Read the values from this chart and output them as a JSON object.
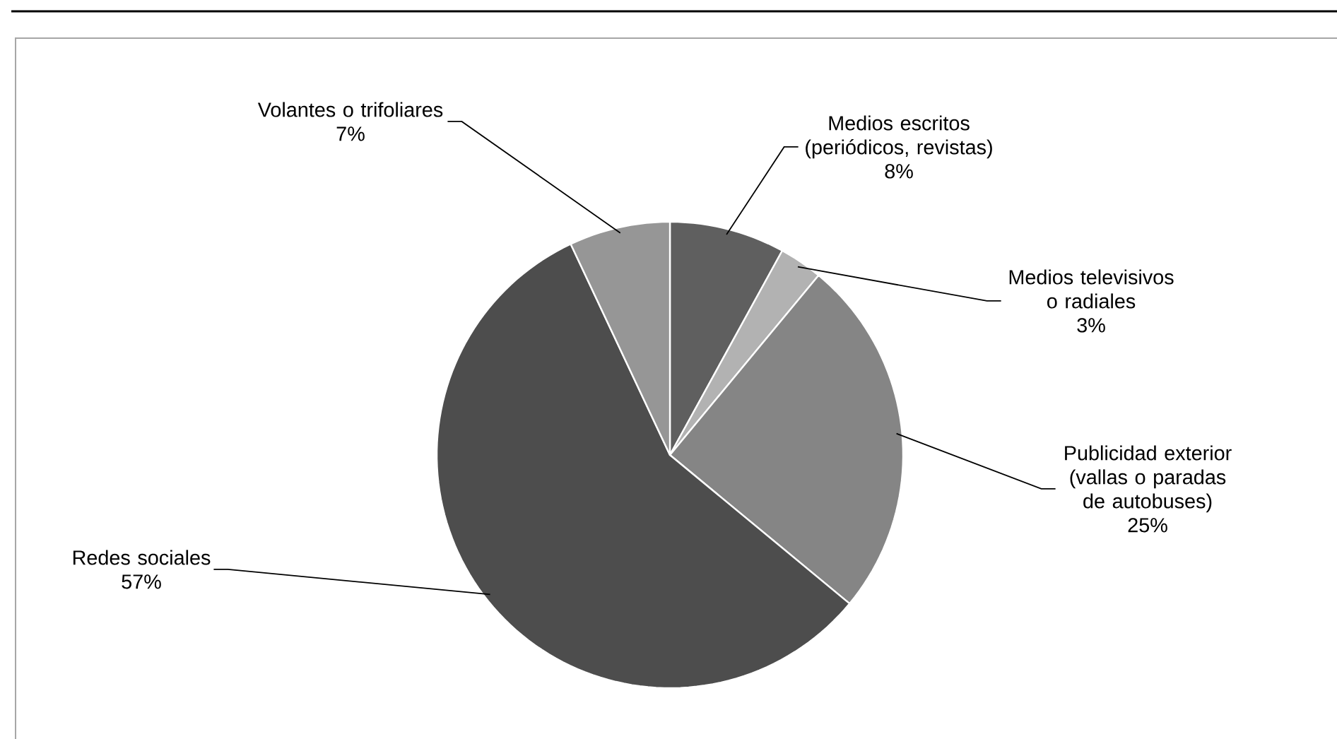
{
  "chart_data": {
    "type": "pie",
    "categories": [
      "Medios escritos (periódicos, revistas)",
      "Medios televisivos o radiales",
      "Publicidad exterior (vallas o paradas de autobuses)",
      "Redes sociales",
      "Volantes o trifoliares"
    ],
    "values": [
      8,
      3,
      25,
      57,
      7
    ],
    "value_labels": [
      "8%",
      "3%",
      "25%",
      "57%",
      "7%"
    ],
    "colors": [
      "#5f5f5f",
      "#b2b2b2",
      "#858585",
      "#4d4d4d",
      "#969696"
    ]
  }
}
